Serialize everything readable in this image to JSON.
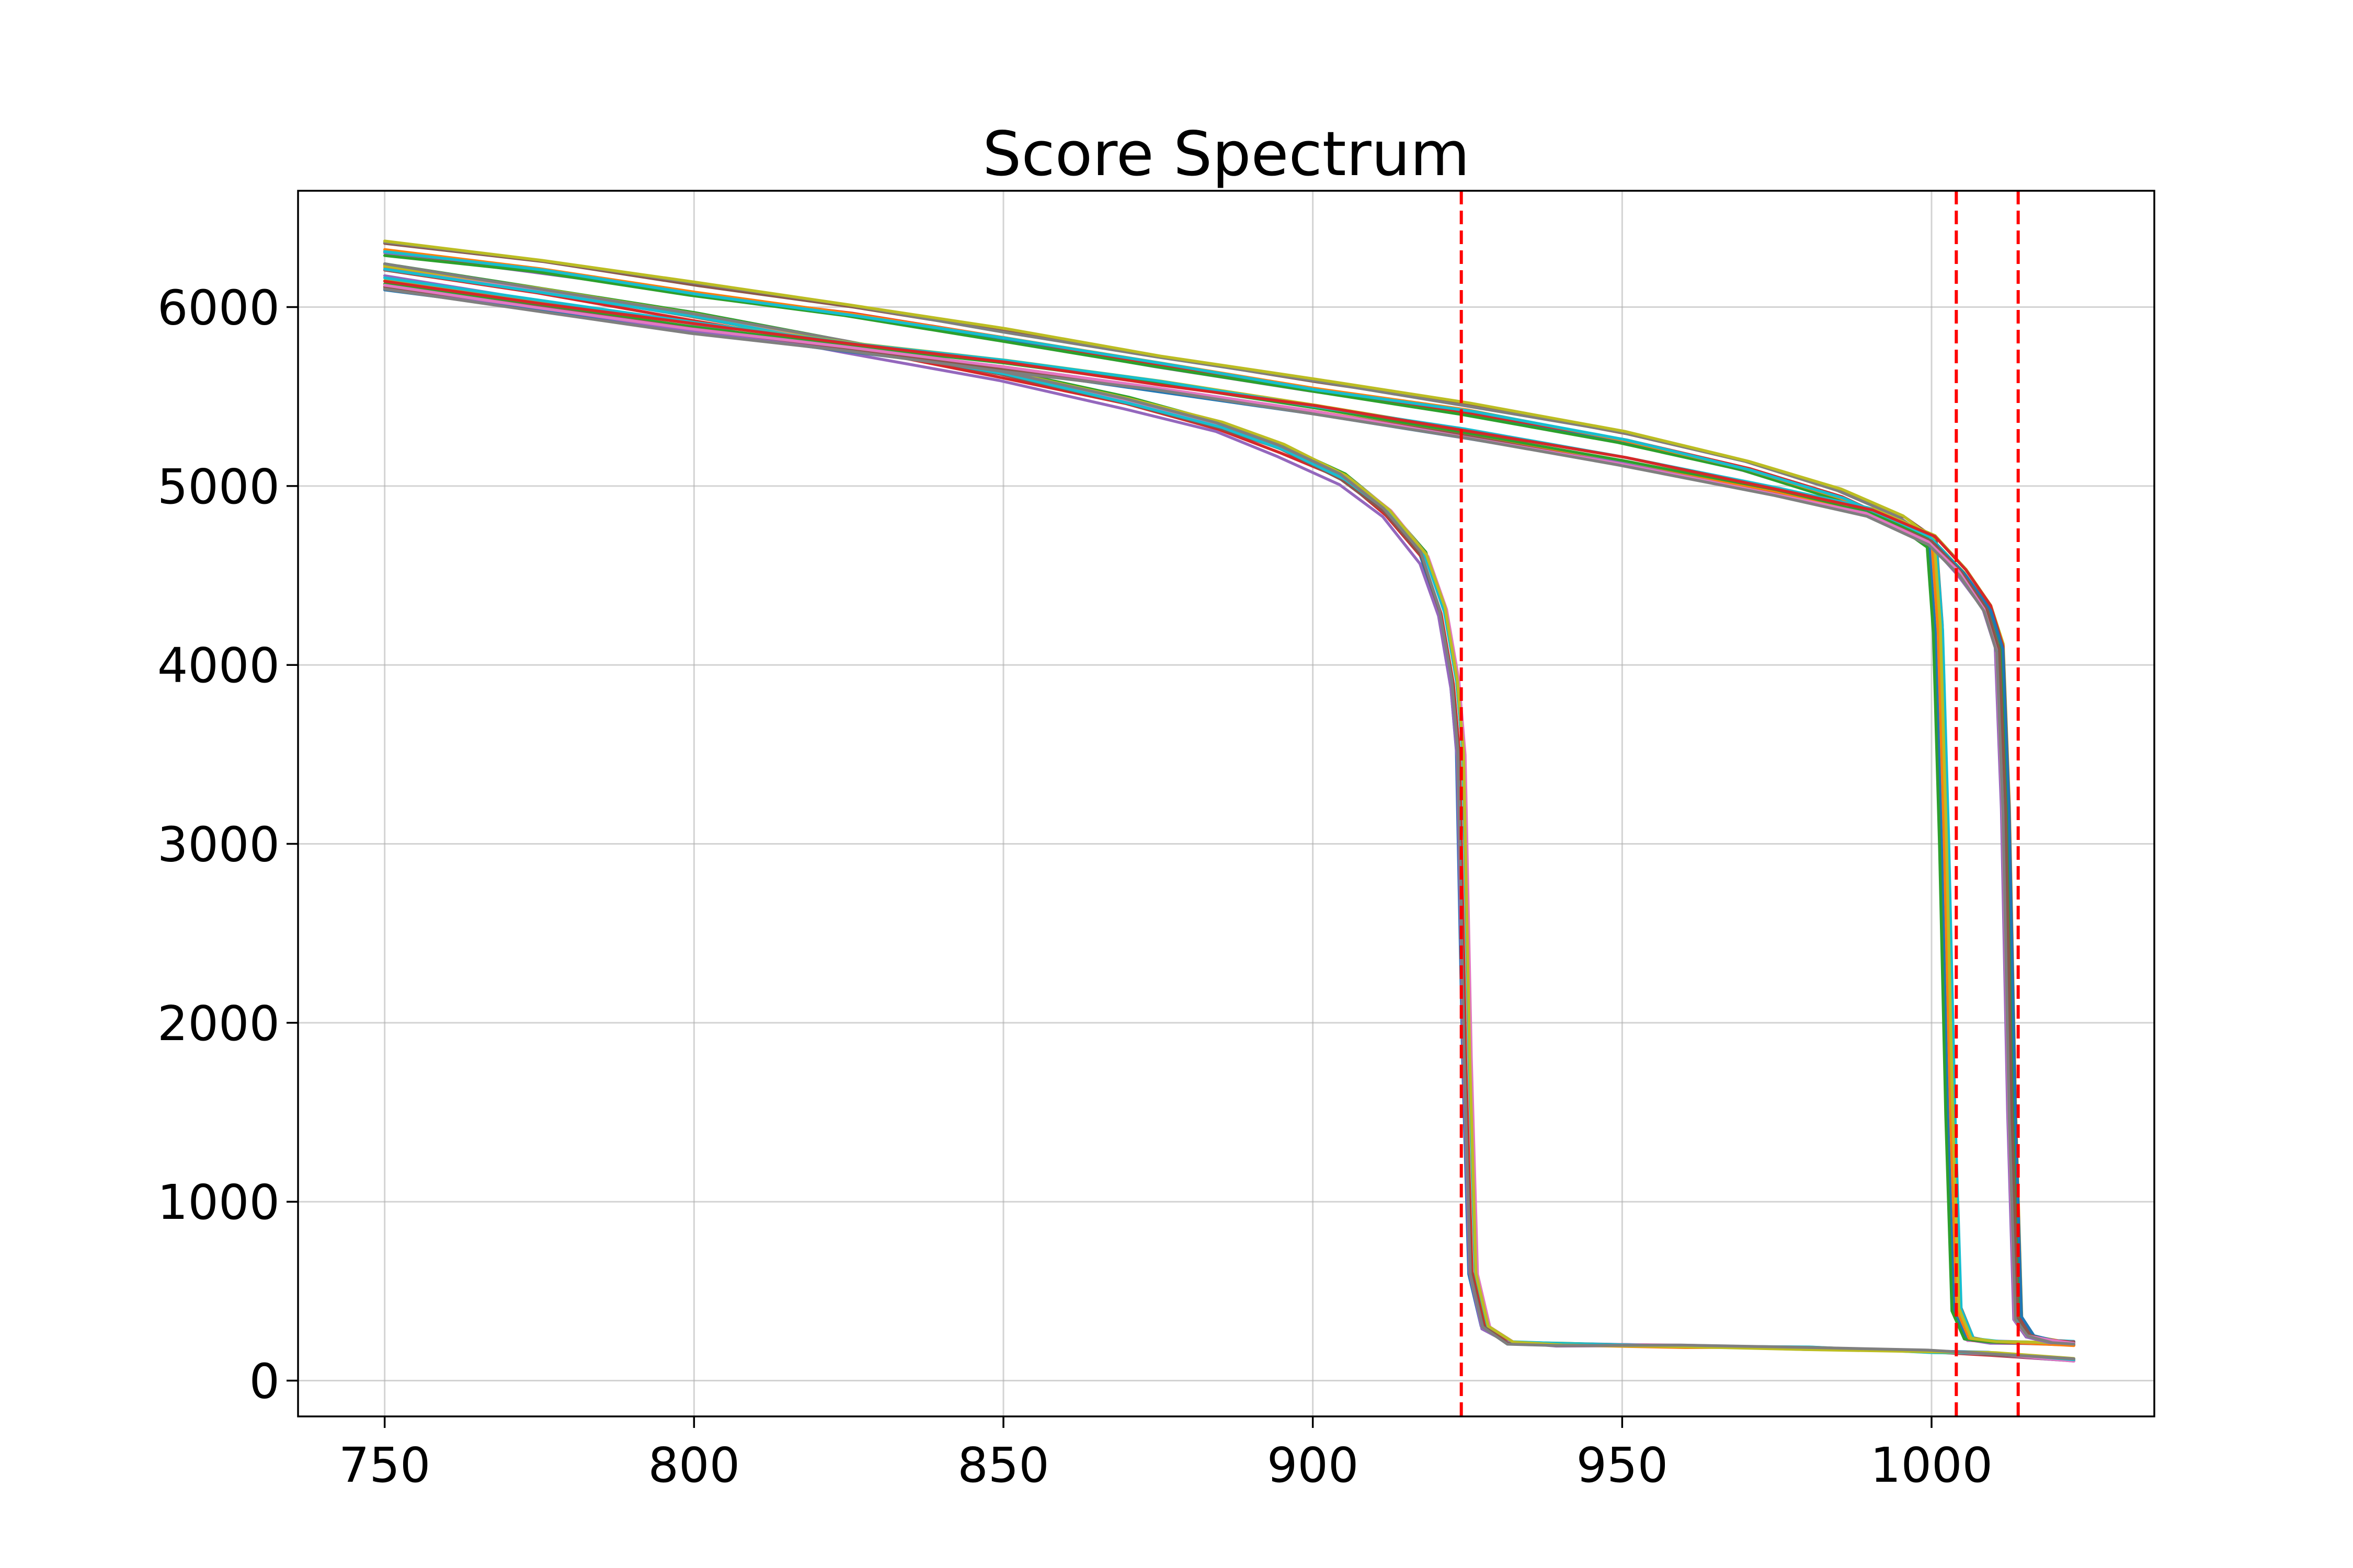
{
  "chart_data": {
    "type": "line",
    "title": "Score Spectrum",
    "xlabel": "",
    "ylabel": "",
    "xlim": [
      736,
      1036
    ],
    "ylim": [
      -200,
      6650
    ],
    "x_ticks": [
      750,
      800,
      850,
      900,
      950,
      1000
    ],
    "y_ticks": [
      0,
      1000,
      2000,
      3000,
      4000,
      5000,
      6000
    ],
    "grid": true,
    "vertical_reference_lines": [
      {
        "x": 924,
        "color": "#ff0000",
        "style": "dashed"
      },
      {
        "x": 1004,
        "color": "#ff0000",
        "style": "dashed"
      },
      {
        "x": 1014,
        "color": "#ff0000",
        "style": "dashed"
      }
    ],
    "series_groups": [
      {
        "colors": [
          "#1f77b4",
          "#ff7f0e",
          "#2ca02c",
          "#d62728",
          "#9467bd",
          "#8c564b",
          "#e377c2",
          "#17becf",
          "#bcbd22",
          "#7f7f7f"
        ],
        "points": [
          [
            750,
            6210
          ],
          [
            775,
            6080
          ],
          [
            800,
            5940
          ],
          [
            825,
            5780
          ],
          [
            850,
            5620
          ],
          [
            870,
            5470
          ],
          [
            885,
            5330
          ],
          [
            895,
            5200
          ],
          [
            905,
            5040
          ],
          [
            912,
            4850
          ],
          [
            918,
            4600
          ],
          [
            921,
            4300
          ],
          [
            923,
            3900
          ],
          [
            924,
            3500
          ],
          [
            925,
            1800
          ],
          [
            926,
            600
          ],
          [
            928,
            300
          ],
          [
            932,
            210
          ],
          [
            940,
            200
          ],
          [
            960,
            190
          ],
          [
            980,
            180
          ],
          [
            1000,
            165
          ],
          [
            1010,
            150
          ],
          [
            1023,
            115
          ]
        ]
      },
      {
        "colors": [
          "#8c564b",
          "#7f7f7f",
          "#e377c2",
          "#9467bd",
          "#1f77b4",
          "#d62728",
          "#2ca02c",
          "#ff7f0e",
          "#17becf",
          "#bcbd22"
        ],
        "points": [
          [
            750,
            6330
          ],
          [
            775,
            6230
          ],
          [
            800,
            6100
          ],
          [
            825,
            5980
          ],
          [
            850,
            5840
          ],
          [
            875,
            5700
          ],
          [
            900,
            5560
          ],
          [
            925,
            5430
          ],
          [
            950,
            5270
          ],
          [
            970,
            5110
          ],
          [
            985,
            4950
          ],
          [
            995,
            4800
          ],
          [
            1000,
            4680
          ],
          [
            1001,
            4200
          ],
          [
            1002,
            3000
          ],
          [
            1003,
            1500
          ],
          [
            1004,
            400
          ],
          [
            1006,
            230
          ],
          [
            1010,
            215
          ],
          [
            1023,
            205
          ]
        ]
      },
      {
        "colors": [
          "#bcbd22",
          "#2ca02c",
          "#ff7f0e",
          "#17becf",
          "#d62728",
          "#1f77b4",
          "#9467bd",
          "#8c564b",
          "#e377c2",
          "#7f7f7f"
        ],
        "points": [
          [
            750,
            6130
          ],
          [
            775,
            6010
          ],
          [
            800,
            5890
          ],
          [
            825,
            5780
          ],
          [
            850,
            5680
          ],
          [
            875,
            5560
          ],
          [
            900,
            5430
          ],
          [
            925,
            5290
          ],
          [
            950,
            5140
          ],
          [
            975,
            4970
          ],
          [
            990,
            4850
          ],
          [
            1000,
            4700
          ],
          [
            1005,
            4520
          ],
          [
            1009,
            4320
          ],
          [
            1011,
            4100
          ],
          [
            1012,
            3200
          ],
          [
            1013,
            1500
          ],
          [
            1014,
            350
          ],
          [
            1016,
            250
          ],
          [
            1020,
            220
          ],
          [
            1023,
            210
          ]
        ]
      }
    ]
  }
}
